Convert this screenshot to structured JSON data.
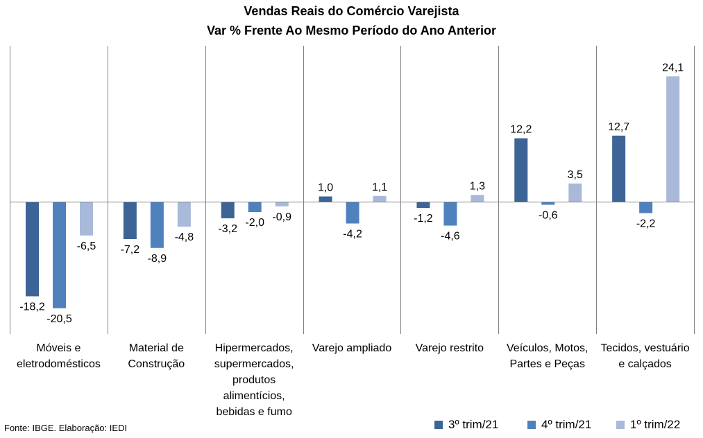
{
  "chart_data": {
    "type": "bar",
    "title": "Vendas Reais do Comércio Varejista",
    "subtitle": "Var % Frente Ao Mesmo Período do Ano Anterior",
    "categories": [
      [
        "Móveis e",
        "eletrodomésticos"
      ],
      [
        "Material de",
        "Construção"
      ],
      [
        "Hipermercados,",
        "supermercados,",
        "produtos",
        "alimentícios,",
        "bebidas e fumo"
      ],
      [
        "Varejo ampliado"
      ],
      [
        "Varejo restrito"
      ],
      [
        "Veículos, Motos,",
        "Partes e Peças"
      ],
      [
        "Tecidos, vestuário",
        "e calçados"
      ]
    ],
    "series": [
      {
        "name": "3º trim/21",
        "color": "#3d6496",
        "values": [
          -18.2,
          -7.2,
          -3.2,
          1.0,
          -1.2,
          12.2,
          12.7
        ]
      },
      {
        "name": "4º trim/21",
        "color": "#4f82bd",
        "values": [
          -20.5,
          -8.9,
          -2.0,
          -4.2,
          -4.6,
          -0.6,
          -2.2
        ]
      },
      {
        "name": "1º trim/22",
        "color": "#a9b9d9",
        "values": [
          -6.5,
          -4.8,
          -0.9,
          1.1,
          1.3,
          3.5,
          24.1
        ]
      }
    ],
    "data_labels": [
      [
        "-18,2",
        "-7,2",
        "-3,2",
        "1,0",
        "-1,2",
        "12,2",
        "12,7"
      ],
      [
        "-20,5",
        "-8,9",
        "-2,0",
        "-4,2",
        "-4,6",
        "-0,6",
        "-2,2"
      ],
      [
        "-6,5",
        "-4,8",
        "-0,9",
        "1,1",
        "1,3",
        "3,5",
        "24,1"
      ]
    ],
    "ylim": [
      -26,
      30
    ],
    "legend_position": "bottom-right",
    "grid": false
  },
  "source": "Fonte: IBGE. Elaboração: IEDI"
}
